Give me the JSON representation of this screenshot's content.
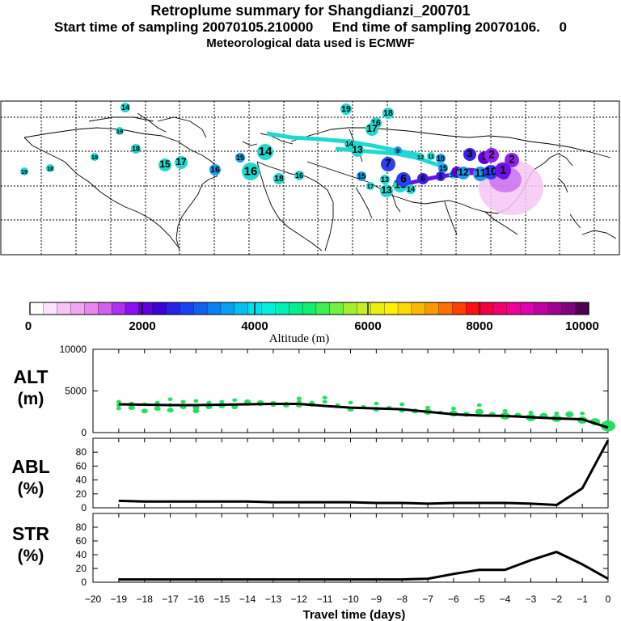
{
  "header": {
    "title": "Retroplume summary for Shangdianzi_200701",
    "sampling": "Start time of sampling 20070105.210000     End time of sampling 20070106.     0",
    "met": "Meteorological data used is ECMWF"
  },
  "colorbar": {
    "tick_labels": [
      "0",
      "2000",
      "4000",
      "6000",
      "8000",
      "10000"
    ],
    "label": "Altitude  (m)",
    "colors": [
      "#ffffff",
      "#fbe3fb",
      "#f5c6f5",
      "#efa8ef",
      "#e888ee",
      "#d060f0",
      "#b030f0",
      "#8a10f0",
      "#6000e0",
      "#3a00d8",
      "#2a20e8",
      "#1a40f0",
      "#1060f0",
      "#0a80f0",
      "#06a0f0",
      "#04c0f0",
      "#00e0f0",
      "#00f0e0",
      "#00f0b8",
      "#00f090",
      "#10f070",
      "#40f050",
      "#70f040",
      "#a0f030",
      "#c8f020",
      "#e8f010",
      "#fff000",
      "#ffd800",
      "#ffb800",
      "#ff9800",
      "#ff7000",
      "#ff4000",
      "#ff1010",
      "#f00040",
      "#f00070",
      "#f00098",
      "#e000b0",
      "#c000a0",
      "#a00090",
      "#800080",
      "#500050"
    ]
  },
  "map": {
    "points": [
      {
        "label": "14",
        "color": "#1fd9d0"
      },
      {
        "label": "19",
        "color": "#1fd9d0"
      },
      {
        "label": "18",
        "color": "#1fd9d0"
      },
      {
        "label": "16",
        "color": "#1fd9d0"
      },
      {
        "label": "17",
        "color": "#1fd9d0"
      },
      {
        "label": "19",
        "color": "#1fd9d0"
      },
      {
        "label": "18",
        "color": "#1fd9d0"
      },
      {
        "label": "18",
        "color": "#1fd9d0"
      },
      {
        "label": "18",
        "color": "#1fd9d0"
      },
      {
        "label": "15",
        "color": "#1a9ae8"
      },
      {
        "label": "14",
        "color": "#1fd9d0"
      },
      {
        "label": "16",
        "color": "#1fd9d0"
      },
      {
        "label": "15",
        "color": "#1fd9d0"
      },
      {
        "label": "17",
        "color": "#1fd9d0"
      },
      {
        "label": "16",
        "color": "#1a9ae8"
      },
      {
        "label": "13",
        "color": "#1fd9d0"
      },
      {
        "label": "14",
        "color": "#1fd9d0"
      },
      {
        "label": "19",
        "color": "#1fd9d0"
      },
      {
        "label": "18",
        "color": "#1fd9d0"
      },
      {
        "label": "16",
        "color": "#1fd9d0"
      },
      {
        "label": "15",
        "color": "#1a9ae8"
      },
      {
        "label": "17",
        "color": "#1fd9d0"
      },
      {
        "label": "13",
        "color": "#1fd9d0"
      },
      {
        "label": "13",
        "color": "#1fd9d0"
      },
      {
        "label": "9",
        "color": "#1a9ae8"
      },
      {
        "label": "12",
        "color": "#1fd9d0"
      },
      {
        "label": "11",
        "color": "#1fd9d0"
      },
      {
        "label": "10",
        "color": "#1a9ae8"
      },
      {
        "label": "7",
        "color": "#2a40f0"
      },
      {
        "label": "15",
        "color": "#1a9ae8"
      },
      {
        "label": "16",
        "color": "#1fd9d0"
      },
      {
        "label": "6",
        "color": "#2a40f0"
      },
      {
        "label": "14",
        "color": "#1fd9d0"
      },
      {
        "label": "13",
        "color": "#1fd9d0"
      },
      {
        "label": "6",
        "color": "#3a20e0"
      },
      {
        "label": "5",
        "color": "#3a20e0"
      },
      {
        "label": "4",
        "color": "#6000e0"
      },
      {
        "label": "3",
        "color": "#3a20e0"
      },
      {
        "label": "12",
        "color": "#1a9ae8"
      },
      {
        "label": "11",
        "color": "#1a9ae8"
      },
      {
        "label": "10",
        "color": "#2a40f0"
      },
      {
        "label": "9",
        "color": "#3a20e0"
      },
      {
        "label": "3",
        "color": "#6000e0"
      },
      {
        "label": "2",
        "color": "#9020f0"
      },
      {
        "label": "2",
        "color": "#9020f0"
      },
      {
        "label": "1",
        "color": "#7010e8"
      }
    ]
  },
  "panels": {
    "alt": {
      "label_line1": "ALT",
      "label_line2": "(m)"
    },
    "abl": {
      "label_line1": "ABL",
      "label_line2": "(%)"
    },
    "str": {
      "label_line1": "STR",
      "label_line2": "(%)"
    },
    "xlabel": "Travel time (days)"
  },
  "chart_data": [
    {
      "type": "line",
      "ylabel": "ALT (m)",
      "x": [
        -19,
        -18,
        -17,
        -16,
        -15,
        -14,
        -13,
        -12,
        -11,
        -10,
        -9,
        -8,
        -7,
        -6,
        -5,
        -4,
        -3,
        -2,
        -1,
        0
      ],
      "values": [
        3400,
        3350,
        3300,
        3300,
        3350,
        3400,
        3450,
        3450,
        3200,
        3000,
        2900,
        2800,
        2500,
        2200,
        2050,
        2000,
        1850,
        1700,
        1600,
        600
      ],
      "ylim": [
        0,
        10000
      ],
      "yticks": [
        "10000",
        "5000",
        "0"
      ],
      "scatter_x": [
        -19,
        -19,
        -19,
        -18.5,
        -18.5,
        -18,
        -18,
        -17.5,
        -17.5,
        -17,
        -17,
        -17,
        -16.5,
        -16.5,
        -16,
        -16,
        -16,
        -15.5,
        -15.5,
        -15,
        -15,
        -14.5,
        -14.5,
        -14,
        -14,
        -13.5,
        -13.5,
        -13,
        -13,
        -12.5,
        -12.5,
        -12,
        -12,
        -12,
        -11.5,
        -11.5,
        -11,
        -11,
        -10.5,
        -10,
        -10,
        -9.5,
        -9,
        -9,
        -8.5,
        -8,
        -8,
        -7.5,
        -7,
        -7,
        -6.5,
        -6,
        -6,
        -5.5,
        -5,
        -5,
        -4.5,
        -4,
        -4,
        -3.5,
        -3,
        -3,
        -2.5,
        -2,
        -2,
        -1.5,
        -1,
        -1,
        -0.5,
        0
      ],
      "scatter_y": [
        3700,
        3300,
        2900,
        3500,
        3000,
        3400,
        2600,
        3600,
        2900,
        4000,
        3300,
        2700,
        3700,
        3100,
        3800,
        3000,
        2600,
        3600,
        3100,
        3700,
        3200,
        3900,
        3100,
        3500,
        3700,
        3400,
        3600,
        3300,
        3500,
        3400,
        3300,
        4100,
        3700,
        3300,
        3600,
        3400,
        4200,
        3700,
        3300,
        3600,
        2800,
        3100,
        3500,
        2800,
        3000,
        3400,
        2700,
        2600,
        3000,
        2500,
        2400,
        2900,
        2300,
        2200,
        3300,
        2500,
        2200,
        2600,
        2000,
        2100,
        2400,
        1800,
        2000,
        2300,
        1700,
        2200,
        2300,
        1500,
        1300,
        800
      ],
      "scatter_size": [
        3,
        3,
        3,
        3,
        4,
        3,
        4,
        3,
        4,
        3,
        3,
        4,
        3,
        4,
        3,
        4,
        4,
        3,
        4,
        3,
        4,
        3,
        4,
        4,
        4,
        3,
        4,
        3,
        4,
        4,
        4,
        3,
        3,
        4,
        3,
        4,
        3,
        3,
        3,
        3,
        4,
        3,
        3,
        4,
        3,
        3,
        4,
        4,
        3,
        5,
        3,
        3,
        5,
        4,
        3,
        5,
        4,
        3,
        6,
        4,
        3,
        6,
        5,
        3,
        6,
        5,
        3,
        6,
        6,
        9
      ]
    },
    {
      "type": "line",
      "ylabel": "ABL (%)",
      "x": [
        -19,
        -18,
        -17,
        -16,
        -15,
        -14,
        -13,
        -12,
        -11,
        -10,
        -9,
        -8,
        -7,
        -6,
        -5,
        -4,
        -3,
        -2,
        -1,
        0
      ],
      "values": [
        10,
        9,
        9,
        9,
        9,
        9,
        8,
        8,
        8,
        8,
        7,
        7,
        6,
        7,
        7,
        7,
        6,
        4,
        28,
        97
      ],
      "ylim": [
        0,
        100
      ],
      "yticks": [
        "80",
        "60",
        "40",
        "20",
        "0"
      ]
    },
    {
      "type": "line",
      "ylabel": "STR (%)",
      "x": [
        -19,
        -18,
        -17,
        -16,
        -15,
        -14,
        -13,
        -12,
        -11,
        -10,
        -9,
        -8,
        -7,
        -6,
        -5,
        -4,
        -3,
        -2,
        -1,
        0
      ],
      "values": [
        4,
        4,
        4,
        4,
        4,
        4,
        4,
        4,
        4,
        4,
        4,
        4,
        5,
        12,
        18,
        18,
        32,
        44,
        26,
        5
      ],
      "ylim": [
        0,
        100
      ],
      "yticks": [
        "80",
        "60",
        "40",
        "20",
        "0"
      ],
      "xticks": [
        "−20",
        "−19",
        "−18",
        "−17",
        "−16",
        "−15",
        "−14",
        "−13",
        "−12",
        "−11",
        "−10",
        "−9",
        "−8",
        "−7",
        "−6",
        "−5",
        "−4",
        "−3",
        "−2",
        "−1",
        "0"
      ],
      "xlabel": "Travel time (days)"
    }
  ]
}
